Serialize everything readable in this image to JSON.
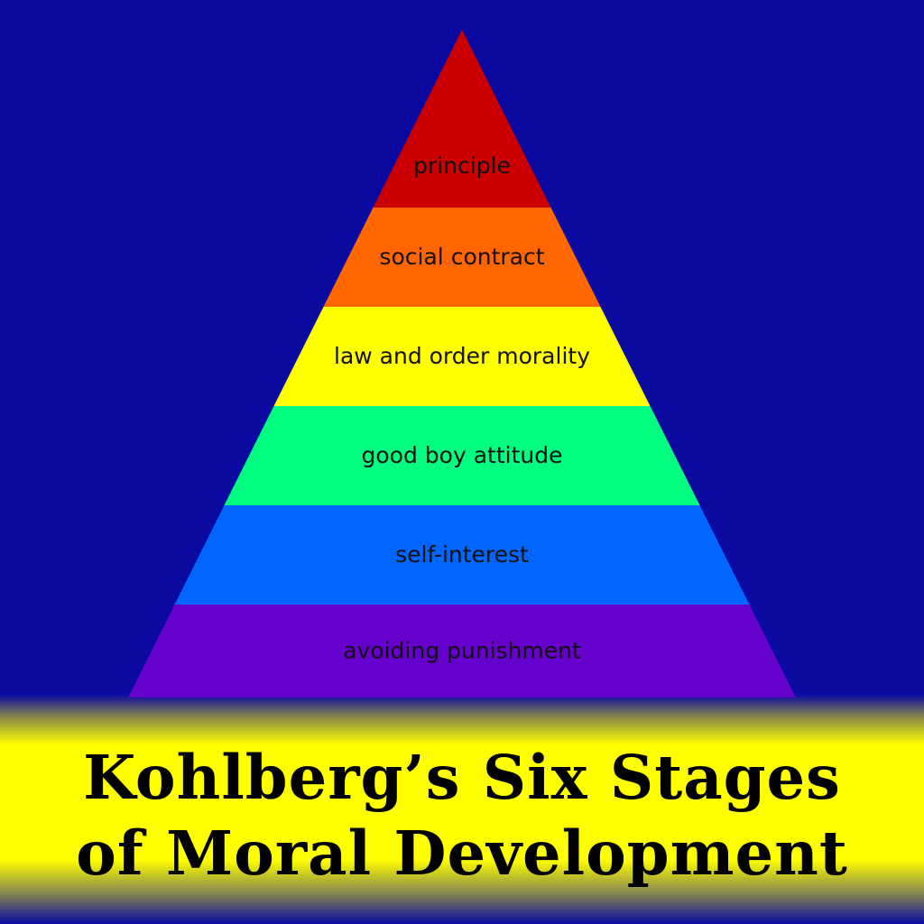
{
  "background_color": "#0a0aa0",
  "title": {
    "line1": "Kohlberg’s Six Stages",
    "line2": "of Moral Development"
  },
  "stages": [
    {
      "label": "principle",
      "color": "#cc0000"
    },
    {
      "label": "social contract",
      "color": "#ff6600"
    },
    {
      "label": "law and order morality",
      "color": "#ffff00"
    },
    {
      "label": "good boy attitude",
      "color": "#00ff80"
    },
    {
      "label": "self-interest",
      "color": "#0066ff"
    },
    {
      "label": "avoiding punishment",
      "color": "#6600cc"
    }
  ]
}
